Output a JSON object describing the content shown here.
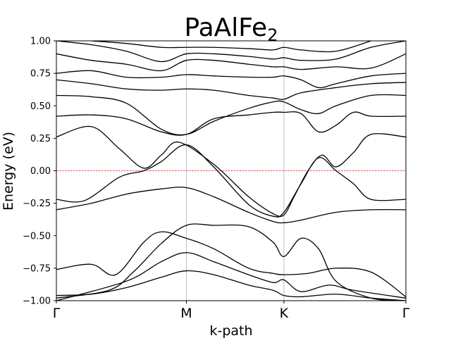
{
  "chart_data": {
    "type": "line",
    "title": "PaAlFe",
    "title_sub": "2",
    "xlabel": "k-path",
    "ylabel": "Energy (eV)",
    "ylim": [
      -1.0,
      1.0
    ],
    "xlim": [
      0,
      1
    ],
    "xticks": [
      {
        "x": 0.0,
        "label": "Γ"
      },
      {
        "x": 0.372,
        "label": "M"
      },
      {
        "x": 0.651,
        "label": "K"
      },
      {
        "x": 1.0,
        "label": "Γ"
      }
    ],
    "yticks": [
      {
        "y": -1.0,
        "label": "−1.00"
      },
      {
        "y": -0.75,
        "label": "−0.75"
      },
      {
        "y": -0.5,
        "label": "−0.50"
      },
      {
        "y": -0.25,
        "label": "−0.25"
      },
      {
        "y": 0.0,
        "label": "0.00"
      },
      {
        "y": 0.25,
        "label": "0.25"
      },
      {
        "y": 0.5,
        "label": "0.50"
      },
      {
        "y": 0.75,
        "label": "0.75"
      },
      {
        "y": 1.0,
        "label": "1.00"
      }
    ],
    "fermi_level": 0.0,
    "grid": "vertical lines at high-symmetry points",
    "colors": {
      "bands": "#000000",
      "fermi": "#ff0000",
      "symgrid": "#b0b0b0"
    },
    "series": [
      {
        "values": [
          [
            0.0,
            -0.96
          ],
          [
            0.1,
            -0.95
          ],
          [
            0.2,
            -0.9
          ],
          [
            0.3,
            -0.82
          ],
          [
            0.372,
            -0.77
          ],
          [
            0.45,
            -0.8
          ],
          [
            0.55,
            -0.88
          ],
          [
            0.62,
            -0.92
          ],
          [
            0.651,
            -0.96
          ],
          [
            0.7,
            -0.97
          ],
          [
            0.8,
            -0.95
          ],
          [
            0.9,
            -0.98
          ],
          [
            1.0,
            -1.0
          ]
        ]
      },
      {
        "values": [
          [
            0.0,
            -0.76
          ],
          [
            0.1,
            -0.72
          ],
          [
            0.17,
            -0.8
          ],
          [
            0.25,
            -0.55
          ],
          [
            0.3,
            -0.47
          ],
          [
            0.372,
            -0.52
          ],
          [
            0.45,
            -0.6
          ],
          [
            0.55,
            -0.75
          ],
          [
            0.62,
            -0.79
          ],
          [
            0.651,
            -0.8
          ],
          [
            0.72,
            -0.79
          ],
          [
            0.8,
            -0.75
          ],
          [
            0.9,
            -0.78
          ],
          [
            1.0,
            -0.97
          ]
        ]
      },
      {
        "values": [
          [
            0.0,
            -0.98
          ],
          [
            0.15,
            -0.92
          ],
          [
            0.22,
            -0.78
          ],
          [
            0.3,
            -0.56
          ],
          [
            0.372,
            -0.42
          ],
          [
            0.45,
            -0.42
          ],
          [
            0.55,
            -0.43
          ],
          [
            0.62,
            -0.55
          ],
          [
            0.651,
            -0.66
          ],
          [
            0.7,
            -0.52
          ],
          [
            0.75,
            -0.6
          ],
          [
            0.8,
            -0.85
          ],
          [
            0.9,
            -0.98
          ],
          [
            1.0,
            -1.0
          ]
        ]
      },
      {
        "values": [
          [
            0.0,
            -1.0
          ],
          [
            0.2,
            -0.85
          ],
          [
            0.3,
            -0.7
          ],
          [
            0.372,
            -0.63
          ],
          [
            0.45,
            -0.7
          ],
          [
            0.55,
            -0.8
          ],
          [
            0.62,
            -0.86
          ],
          [
            0.651,
            -0.84
          ],
          [
            0.7,
            -0.93
          ],
          [
            0.78,
            -0.88
          ],
          [
            0.85,
            -0.92
          ],
          [
            1.0,
            -0.98
          ]
        ]
      },
      {
        "values": [
          [
            0.0,
            -0.3
          ],
          [
            0.1,
            -0.25
          ],
          [
            0.2,
            -0.18
          ],
          [
            0.3,
            -0.14
          ],
          [
            0.372,
            -0.13
          ],
          [
            0.45,
            -0.2
          ],
          [
            0.55,
            -0.32
          ],
          [
            0.62,
            -0.39
          ],
          [
            0.651,
            -0.4
          ],
          [
            0.7,
            -0.38
          ],
          [
            0.8,
            -0.32
          ],
          [
            0.9,
            -0.3
          ],
          [
            1.0,
            -0.3
          ]
        ]
      },
      {
        "values": [
          [
            0.0,
            -0.22
          ],
          [
            0.08,
            -0.23
          ],
          [
            0.18,
            -0.05
          ],
          [
            0.25,
            0.0
          ],
          [
            0.3,
            0.07
          ],
          [
            0.372,
            0.2
          ],
          [
            0.45,
            0.03
          ],
          [
            0.55,
            -0.26
          ],
          [
            0.62,
            -0.35
          ],
          [
            0.651,
            -0.32
          ],
          [
            0.7,
            -0.1
          ],
          [
            0.75,
            0.1
          ],
          [
            0.8,
            0.0
          ],
          [
            0.85,
            -0.1
          ],
          [
            0.9,
            -0.22
          ],
          [
            1.0,
            -0.22
          ]
        ]
      },
      {
        "values": [
          [
            0.0,
            0.26
          ],
          [
            0.1,
            0.34
          ],
          [
            0.18,
            0.17
          ],
          [
            0.25,
            0.02
          ],
          [
            0.3,
            0.12
          ],
          [
            0.35,
            0.22
          ],
          [
            0.45,
            0.05
          ],
          [
            0.55,
            -0.2
          ],
          [
            0.62,
            -0.33
          ],
          [
            0.651,
            -0.34
          ],
          [
            0.68,
            -0.2
          ],
          [
            0.72,
            0.0
          ],
          [
            0.76,
            0.12
          ],
          [
            0.8,
            0.03
          ],
          [
            0.85,
            0.14
          ],
          [
            0.9,
            0.28
          ],
          [
            1.0,
            0.26
          ]
        ]
      },
      {
        "values": [
          [
            0.0,
            0.42
          ],
          [
            0.1,
            0.43
          ],
          [
            0.2,
            0.4
          ],
          [
            0.3,
            0.3
          ],
          [
            0.372,
            0.28
          ],
          [
            0.45,
            0.4
          ],
          [
            0.55,
            0.43
          ],
          [
            0.62,
            0.45
          ],
          [
            0.651,
            0.45
          ],
          [
            0.7,
            0.44
          ],
          [
            0.75,
            0.3
          ],
          [
            0.8,
            0.35
          ],
          [
            0.85,
            0.45
          ],
          [
            0.9,
            0.42
          ],
          [
            1.0,
            0.42
          ]
        ]
      },
      {
        "values": [
          [
            0.0,
            0.58
          ],
          [
            0.1,
            0.57
          ],
          [
            0.2,
            0.52
          ],
          [
            0.3,
            0.32
          ],
          [
            0.372,
            0.28
          ],
          [
            0.45,
            0.38
          ],
          [
            0.55,
            0.48
          ],
          [
            0.62,
            0.53
          ],
          [
            0.651,
            0.53
          ],
          [
            0.7,
            0.47
          ],
          [
            0.75,
            0.44
          ],
          [
            0.8,
            0.5
          ],
          [
            0.9,
            0.58
          ],
          [
            1.0,
            0.58
          ]
        ]
      },
      {
        "values": [
          [
            0.0,
            0.7
          ],
          [
            0.1,
            0.67
          ],
          [
            0.2,
            0.63
          ],
          [
            0.3,
            0.62
          ],
          [
            0.372,
            0.63
          ],
          [
            0.45,
            0.62
          ],
          [
            0.55,
            0.58
          ],
          [
            0.62,
            0.56
          ],
          [
            0.651,
            0.55
          ],
          [
            0.7,
            0.6
          ],
          [
            0.8,
            0.64
          ],
          [
            0.9,
            0.67
          ],
          [
            1.0,
            0.68
          ]
        ]
      },
      {
        "values": [
          [
            0.0,
            0.75
          ],
          [
            0.1,
            0.77
          ],
          [
            0.2,
            0.72
          ],
          [
            0.3,
            0.72
          ],
          [
            0.372,
            0.74
          ],
          [
            0.45,
            0.73
          ],
          [
            0.55,
            0.72
          ],
          [
            0.62,
            0.72
          ],
          [
            0.651,
            0.73
          ],
          [
            0.7,
            0.7
          ],
          [
            0.75,
            0.64
          ],
          [
            0.8,
            0.67
          ],
          [
            0.9,
            0.73
          ],
          [
            1.0,
            0.75
          ]
        ]
      },
      {
        "values": [
          [
            0.0,
            0.9
          ],
          [
            0.1,
            0.85
          ],
          [
            0.2,
            0.82
          ],
          [
            0.3,
            0.77
          ],
          [
            0.372,
            0.85
          ],
          [
            0.45,
            0.85
          ],
          [
            0.55,
            0.82
          ],
          [
            0.62,
            0.8
          ],
          [
            0.651,
            0.8
          ],
          [
            0.7,
            0.78
          ],
          [
            0.8,
            0.8
          ],
          [
            0.9,
            0.79
          ],
          [
            1.0,
            0.9
          ]
        ]
      },
      {
        "values": [
          [
            0.0,
            1.0
          ],
          [
            0.1,
            0.97
          ],
          [
            0.2,
            0.92
          ],
          [
            0.3,
            0.84
          ],
          [
            0.372,
            0.9
          ],
          [
            0.45,
            0.9
          ],
          [
            0.55,
            0.88
          ],
          [
            0.62,
            0.86
          ],
          [
            0.651,
            0.87
          ],
          [
            0.7,
            0.85
          ],
          [
            0.8,
            0.86
          ],
          [
            0.9,
            0.95
          ],
          [
            1.0,
            1.0
          ]
        ]
      },
      {
        "values": [
          [
            0.1,
            1.0
          ],
          [
            0.2,
            0.98
          ],
          [
            0.3,
            0.95
          ],
          [
            0.372,
            0.95
          ],
          [
            0.45,
            0.95
          ],
          [
            0.55,
            0.94
          ],
          [
            0.62,
            0.93
          ],
          [
            0.651,
            0.95
          ],
          [
            0.7,
            0.93
          ],
          [
            0.8,
            0.92
          ],
          [
            0.9,
            1.0
          ]
        ]
      }
    ]
  }
}
